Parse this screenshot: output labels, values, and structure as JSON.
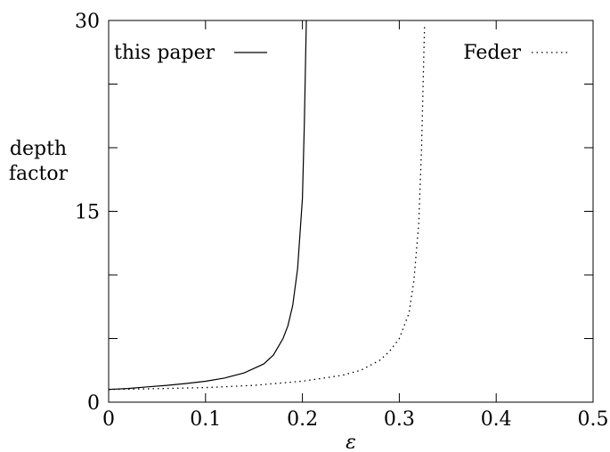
{
  "chart_data": {
    "type": "line",
    "title": "",
    "xlabel": "ε",
    "ylabel_lines": [
      "depth",
      "factor"
    ],
    "xlim": [
      0,
      0.5
    ],
    "ylim": [
      0,
      30
    ],
    "grid": false,
    "legend_placement": "top",
    "x_ticks": [
      "0",
      "0.1",
      "0.2",
      "0.3",
      "0.4",
      "0.5"
    ],
    "y_ticks": [
      "0",
      "15",
      "30"
    ],
    "series": [
      {
        "name": "this paper",
        "style": "solid",
        "color": "#000000",
        "points": [
          [
            0.0,
            1.0
          ],
          [
            0.02,
            1.08
          ],
          [
            0.04,
            1.2
          ],
          [
            0.06,
            1.32
          ],
          [
            0.08,
            1.47
          ],
          [
            0.1,
            1.64
          ],
          [
            0.12,
            1.9
          ],
          [
            0.14,
            2.3
          ],
          [
            0.16,
            3.0
          ],
          [
            0.17,
            3.7
          ],
          [
            0.18,
            5.0
          ],
          [
            0.185,
            6.0
          ],
          [
            0.19,
            7.6
          ],
          [
            0.195,
            10.5
          ],
          [
            0.2,
            16.0
          ],
          [
            0.202,
            22.0
          ],
          [
            0.204,
            30.0
          ]
        ]
      },
      {
        "name": "Feder",
        "style": "dotted",
        "color": "#000000",
        "points": [
          [
            0.0,
            1.0
          ],
          [
            0.05,
            1.06
          ],
          [
            0.1,
            1.15
          ],
          [
            0.15,
            1.32
          ],
          [
            0.2,
            1.65
          ],
          [
            0.24,
            2.1
          ],
          [
            0.26,
            2.5
          ],
          [
            0.28,
            3.3
          ],
          [
            0.29,
            4.0
          ],
          [
            0.3,
            5.0
          ],
          [
            0.31,
            7.0
          ],
          [
            0.315,
            9.5
          ],
          [
            0.32,
            14.0
          ],
          [
            0.323,
            20.0
          ],
          [
            0.326,
            29.5
          ]
        ]
      }
    ]
  }
}
